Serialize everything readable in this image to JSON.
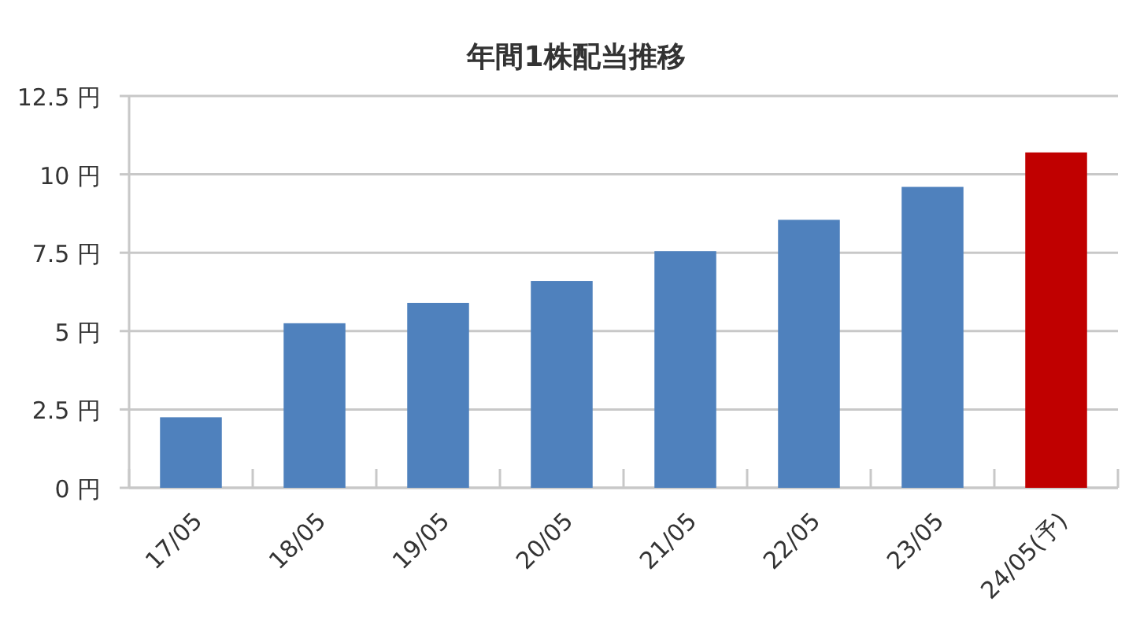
{
  "chart_data": {
    "type": "bar",
    "title": "年間1株配当推移",
    "categories": [
      "17/05",
      "18/05",
      "19/05",
      "20/05",
      "21/05",
      "22/05",
      "23/05",
      "24/05(予)"
    ],
    "values": [
      2.25,
      5.25,
      5.9,
      6.6,
      7.55,
      8.55,
      9.6,
      10.7
    ],
    "colors": [
      "#4f81bd",
      "#4f81bd",
      "#4f81bd",
      "#4f81bd",
      "#4f81bd",
      "#4f81bd",
      "#4f81bd",
      "#c00000"
    ],
    "ylim": [
      0,
      12.5
    ],
    "yticks": [
      {
        "value": 0,
        "label": "0 円"
      },
      {
        "value": 2.5,
        "label": "2.5 円"
      },
      {
        "value": 5,
        "label": "5 円"
      },
      {
        "value": 7.5,
        "label": "7.5 円"
      },
      {
        "value": 10,
        "label": "10 円"
      },
      {
        "value": 12.5,
        "label": "12.5 円"
      }
    ],
    "grid": "y"
  }
}
